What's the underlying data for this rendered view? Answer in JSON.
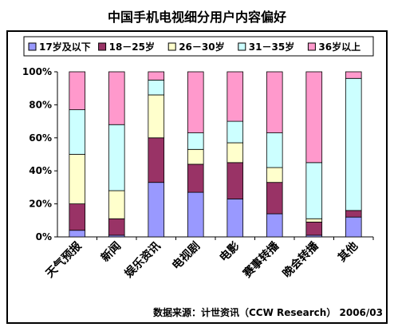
{
  "colors": [
    "#9999FF",
    "#993366",
    "#FFFFCC",
    "#CCFFFF",
    "#FF99CC"
  ],
  "chart_data": {
    "type": "bar",
    "stacked": true,
    "percent": true,
    "title": "中国手机电视细分用户内容偏好",
    "source": "数据来源：计世资讯（CCW Research） 2006/03",
    "categories": [
      "天气预报",
      "新闻",
      "娱乐资讯",
      "电视剧",
      "电影",
      "赛事转播",
      "晚会转播",
      "其他"
    ],
    "series": [
      {
        "name": "17岁及以下",
        "values": [
          4,
          1,
          33,
          27,
          23,
          14,
          1,
          12
        ]
      },
      {
        "name": "18－25岁",
        "values": [
          16,
          10,
          27,
          17,
          22,
          19,
          8,
          4
        ]
      },
      {
        "name": "26－30岁",
        "values": [
          30,
          17,
          26,
          9,
          12,
          9,
          2,
          0
        ]
      },
      {
        "name": "31－35岁",
        "values": [
          27,
          40,
          9,
          10,
          13,
          21,
          34,
          80
        ]
      },
      {
        "name": "36岁以上",
        "values": [
          23,
          32,
          5,
          37,
          30,
          37,
          55,
          4
        ]
      }
    ],
    "yticks": [
      "0%",
      "20%",
      "40%",
      "60%",
      "80%",
      "100%"
    ],
    "ylim": [
      0,
      100
    ],
    "legend_position": "top",
    "grid": false
  }
}
